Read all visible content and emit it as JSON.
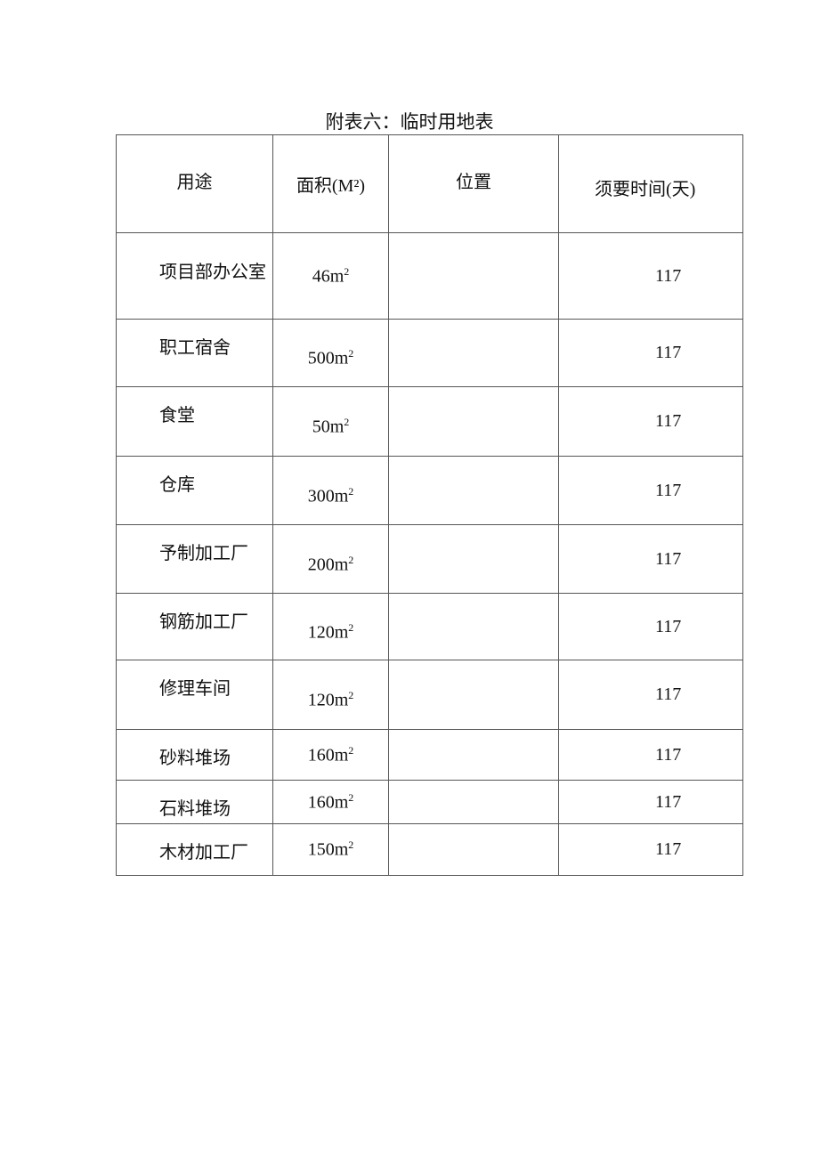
{
  "title": "附表六：临时用地表",
  "table": {
    "headers": [
      "用途",
      "面积(M²)",
      "位置",
      "须要时间(天)"
    ],
    "rows": [
      {
        "use": "项目部办公室",
        "area": "46m²",
        "location": "",
        "days": "117"
      },
      {
        "use": "职工宿舍",
        "area": "500m²",
        "location": "",
        "days": "117"
      },
      {
        "use": "食堂",
        "area": "50m²",
        "location": "",
        "days": "117"
      },
      {
        "use": "仓库",
        "area": "300m²",
        "location": "",
        "days": "117"
      },
      {
        "use": "予制加工厂",
        "area": "200m²",
        "location": "",
        "days": "117"
      },
      {
        "use": "钢筋加工厂",
        "area": "120m²",
        "location": "",
        "days": "117"
      },
      {
        "use": "修理车间",
        "area": "120m²",
        "location": "",
        "days": "117"
      },
      {
        "use": "砂料堆场",
        "area": "160m²",
        "location": "",
        "days": "117"
      },
      {
        "use": "石料堆场",
        "area": "160m²",
        "location": "",
        "days": "117"
      },
      {
        "use": "木材加工厂",
        "area": "150m²",
        "location": "",
        "days": "117"
      }
    ]
  }
}
